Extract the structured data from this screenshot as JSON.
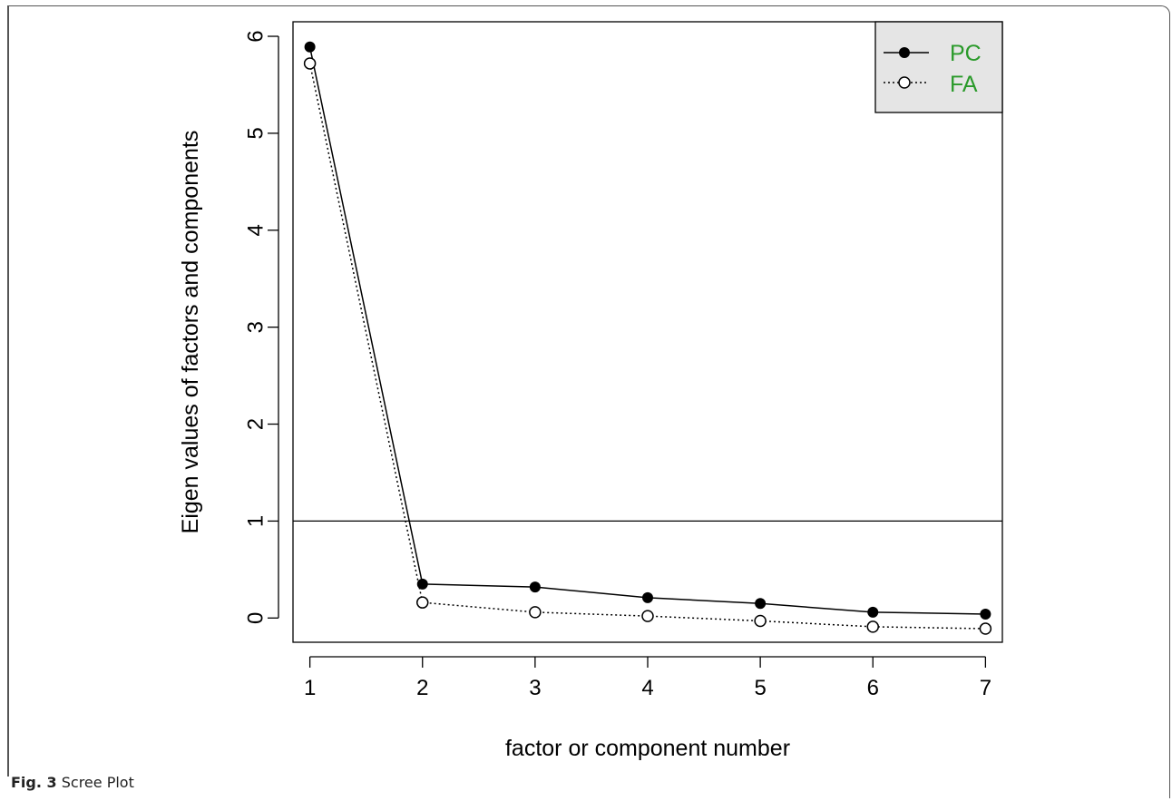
{
  "caption": {
    "label": "Fig. 3",
    "text": "Scree Plot"
  },
  "chart_data": {
    "type": "line",
    "xlabel": "factor or component number",
    "ylabel": "Eigen values of factors and components",
    "x": [
      1,
      2,
      3,
      4,
      5,
      6,
      7
    ],
    "xlim": [
      0.85,
      7.15
    ],
    "ylim": [
      -0.25,
      6.15
    ],
    "xticks": [
      1,
      2,
      3,
      4,
      5,
      6,
      7
    ],
    "yticks": [
      0,
      1,
      2,
      3,
      4,
      5,
      6
    ],
    "reference_line": {
      "y": 1
    },
    "legend": {
      "placement": "top-right",
      "background": "#e5e5e5",
      "text_color": "#2a9a2a"
    },
    "series": [
      {
        "name": "PC",
        "values": [
          5.89,
          0.35,
          0.32,
          0.21,
          0.15,
          0.06,
          0.04
        ],
        "marker": "filled-circle",
        "line": "solid"
      },
      {
        "name": "FA",
        "values": [
          5.72,
          0.16,
          0.06,
          0.02,
          -0.03,
          -0.09,
          -0.11
        ],
        "marker": "open-circle",
        "line": "dotted"
      }
    ]
  }
}
